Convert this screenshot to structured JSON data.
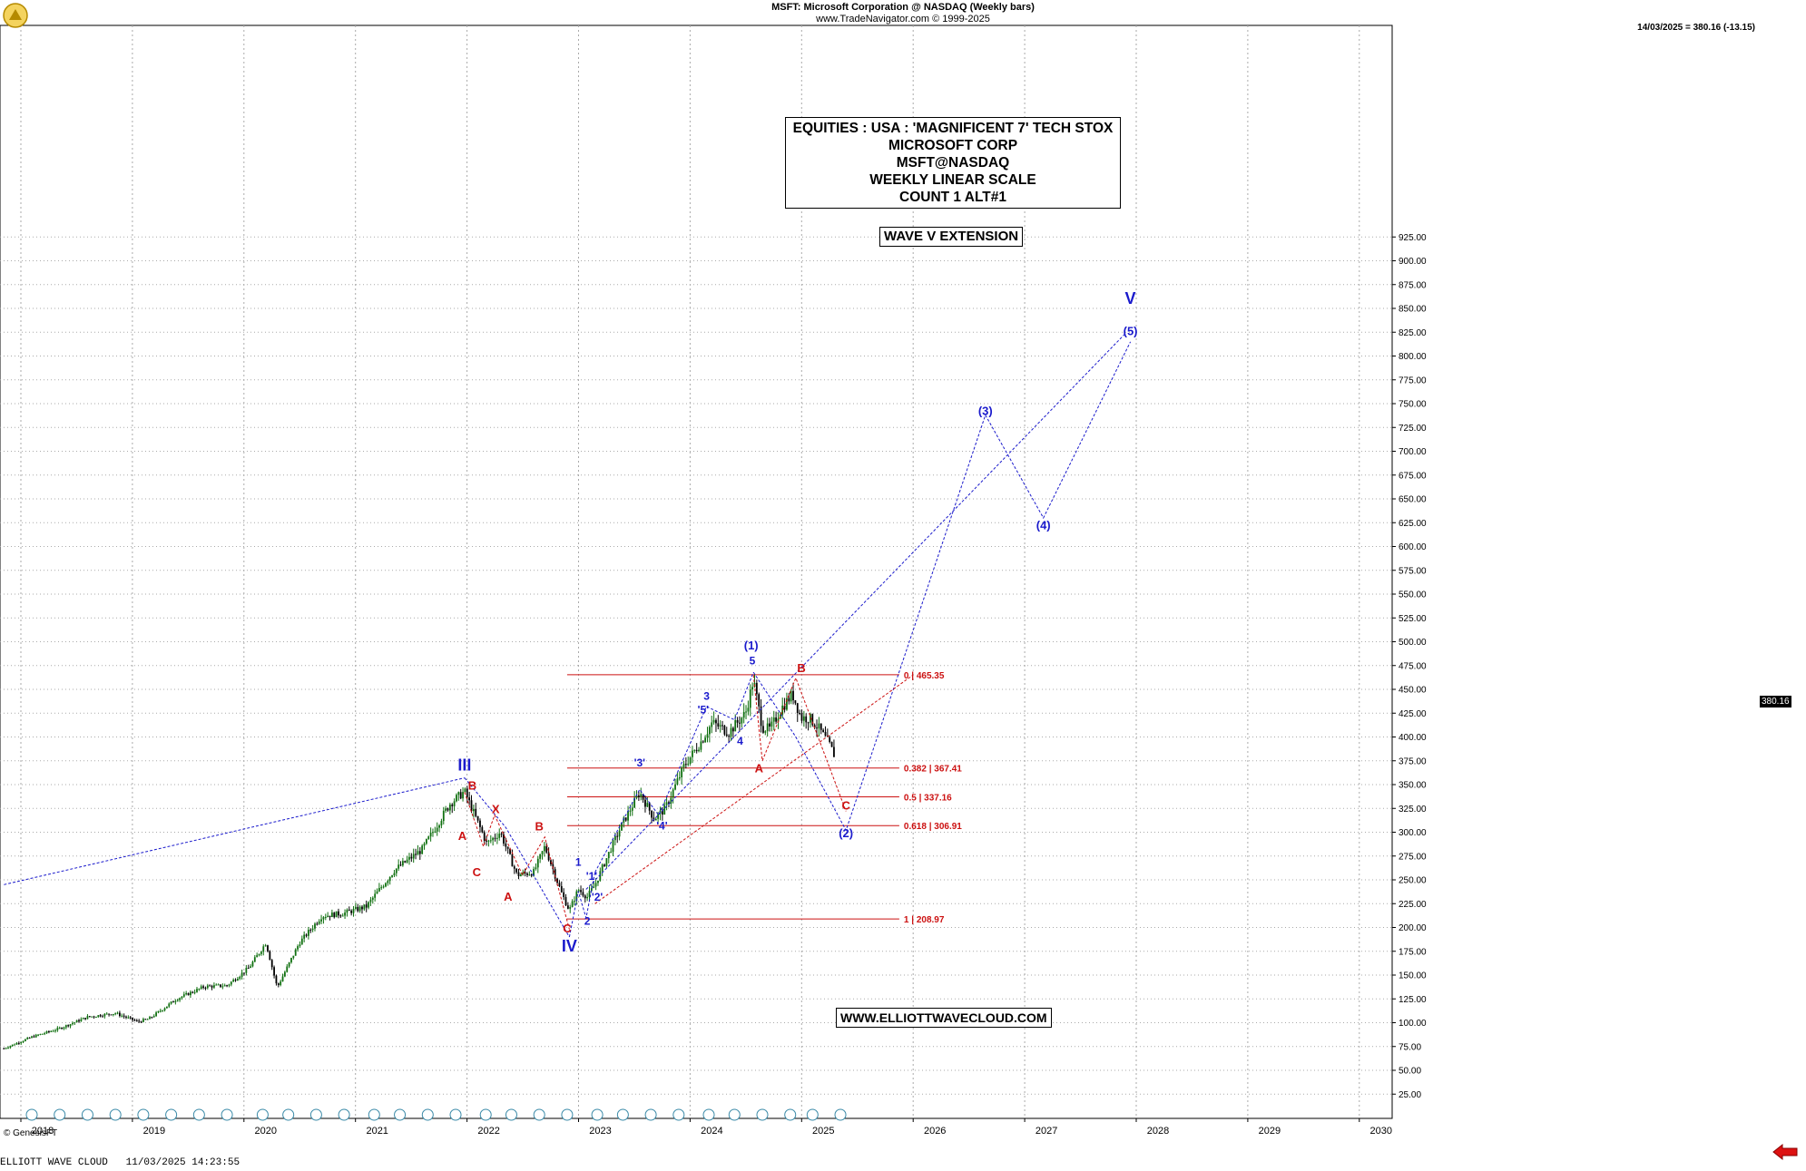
{
  "header": {
    "title": "MSFT:  Microsoft Corporation @ NASDAQ  (Weekly bars)",
    "copyright": "www.TradeNavigator.com © 1999-2025",
    "quote": "14/03/2025 = 380.16 (-13.15)"
  },
  "infobox": {
    "lines": [
      "EQUITIES : USA : 'MAGNIFICENT 7' TECH STOX",
      "MICROSOFT CORP",
      "MSFT@NASDAQ",
      "WEEKLY LINEAR SCALE",
      "COUNT 1 ALT#1"
    ]
  },
  "tag_wave": "WAVE V EXTENSION",
  "tag_site": "WWW.ELLIOTTWAVECLOUD.COM",
  "genesis": "© GenesisFT",
  "footer": "ELLIOTT WAVE CLOUD   11/03/2025 14:23:55",
  "last_price_label": "380.16",
  "colors": {
    "bull": "#107010",
    "bear": "#000000",
    "blue": "#1a1acc",
    "red": "#cc1111",
    "grid": "#aaaaaa"
  },
  "chart_data": {
    "type": "candlestick",
    "x_range": [
      2017.75,
      2030.1
    ],
    "ylim": [
      0,
      945
    ],
    "y_ticks": [
      25,
      50,
      75,
      100,
      125,
      150,
      175,
      200,
      225,
      250,
      275,
      300,
      325,
      350,
      375,
      400,
      425,
      450,
      475,
      500,
      525,
      550,
      575,
      600,
      625,
      650,
      675,
      700,
      725,
      750,
      775,
      800,
      825,
      850,
      875,
      900,
      925
    ],
    "x_ticks": [
      "2018",
      "2019",
      "2020",
      "2021",
      "2022",
      "2023",
      "2024",
      "2025",
      "2026",
      "2027",
      "2028",
      "2029",
      "2030"
    ],
    "price_path": [
      [
        2017.75,
        73
      ],
      [
        2018.0,
        85
      ],
      [
        2018.25,
        94
      ],
      [
        2018.5,
        106
      ],
      [
        2018.75,
        110
      ],
      [
        2018.95,
        101
      ],
      [
        2019.05,
        104
      ],
      [
        2019.3,
        125
      ],
      [
        2019.55,
        138
      ],
      [
        2019.75,
        139
      ],
      [
        2019.95,
        158
      ],
      [
        2020.1,
        184
      ],
      [
        2020.2,
        137
      ],
      [
        2020.4,
        184
      ],
      [
        2020.6,
        212
      ],
      [
        2020.8,
        215
      ],
      [
        2021.0,
        222
      ],
      [
        2021.25,
        260
      ],
      [
        2021.5,
        282
      ],
      [
        2021.75,
        330
      ],
      [
        2021.88,
        343
      ],
      [
        2022.0,
        310
      ],
      [
        2022.08,
        288
      ],
      [
        2022.2,
        300
      ],
      [
        2022.35,
        255
      ],
      [
        2022.5,
        258
      ],
      [
        2022.6,
        285
      ],
      [
        2022.75,
        236
      ],
      [
        2022.82,
        218
      ],
      [
        2022.9,
        240
      ],
      [
        2022.98,
        232
      ],
      [
        2023.05,
        245
      ],
      [
        2023.2,
        285
      ],
      [
        2023.3,
        310
      ],
      [
        2023.45,
        342
      ],
      [
        2023.58,
        314
      ],
      [
        2023.68,
        325
      ],
      [
        2023.85,
        370
      ],
      [
        2024.0,
        395
      ],
      [
        2024.1,
        415
      ],
      [
        2024.25,
        405
      ],
      [
        2024.4,
        425
      ],
      [
        2024.47,
        460
      ],
      [
        2024.55,
        410
      ],
      [
        2024.62,
        408
      ],
      [
        2024.72,
        430
      ],
      [
        2024.82,
        445
      ],
      [
        2024.9,
        420
      ],
      [
        2024.97,
        420
      ],
      [
        2025.05,
        410
      ],
      [
        2025.15,
        392
      ],
      [
        2025.2,
        380
      ]
    ],
    "fib_levels": [
      {
        "label": "0 | 465.35",
        "value": 465.35
      },
      {
        "label": "0.382 | 367.41",
        "value": 367.41
      },
      {
        "label": "0.5 | 337.16",
        "value": 337.16
      },
      {
        "label": "0.618 | 306.91",
        "value": 306.91
      },
      {
        "label": "1 | 208.97",
        "value": 208.97
      }
    ],
    "fib_x_range": [
      2022.8,
      2025.9
    ],
    "blue_paths": [
      [
        [
          2017.75,
          245
        ],
        [
          2021.88,
          357
        ]
      ],
      [
        [
          2021.88,
          357
        ],
        [
          2022.25,
          305
        ],
        [
          2022.82,
          190
        ]
      ],
      [
        [
          2022.82,
          190
        ],
        [
          2022.9,
          238
        ],
        [
          2022.97,
          210
        ],
        [
          2023.05,
          258
        ]
      ],
      [
        [
          2023.05,
          258
        ],
        [
          2023.45,
          345
        ],
        [
          2023.62,
          318
        ],
        [
          2024.05,
          432
        ],
        [
          2024.3,
          418
        ],
        [
          2024.47,
          468
        ]
      ],
      [
        [
          2024.47,
          468
        ],
        [
          2024.85,
          400
        ],
        [
          2025.3,
          302
        ],
        [
          2026.55,
          738
        ],
        [
          2027.07,
          630
        ],
        [
          2027.85,
          815
        ]
      ],
      [
        [
          2022.97,
          240
        ],
        [
          2027.8,
          823
        ]
      ]
    ],
    "red_paths": [
      [
        [
          2021.88,
          342
        ],
        [
          2022.05,
          285
        ],
        [
          2022.15,
          318
        ],
        [
          2022.4,
          255
        ],
        [
          2022.6,
          295
        ],
        [
          2022.82,
          198
        ]
      ],
      [
        [
          2024.47,
          465
        ],
        [
          2024.55,
          375
        ],
        [
          2024.85,
          462
        ],
        [
          2025.3,
          322
        ]
      ],
      [
        [
          2023.05,
          225
        ],
        [
          2025.9,
          465
        ]
      ]
    ],
    "labels": [
      {
        "text": "III",
        "x": 2021.88,
        "y": 365,
        "color": "blue",
        "size": 18
      },
      {
        "text": "IV",
        "x": 2022.82,
        "y": 175,
        "color": "blue",
        "size": 18
      },
      {
        "text": "V",
        "x": 2027.85,
        "y": 855,
        "color": "blue",
        "size": 18
      },
      {
        "text": "B",
        "x": 2021.95,
        "y": 345,
        "color": "red",
        "size": 13
      },
      {
        "text": "A",
        "x": 2021.86,
        "y": 292,
        "color": "red",
        "size": 13
      },
      {
        "text": "C",
        "x": 2021.99,
        "y": 254,
        "color": "red",
        "size": 13
      },
      {
        "text": "X",
        "x": 2022.16,
        "y": 320,
        "color": "red",
        "size": 13
      },
      {
        "text": "A",
        "x": 2022.27,
        "y": 228,
        "color": "red",
        "size": 13
      },
      {
        "text": "B",
        "x": 2022.55,
        "y": 302,
        "color": "red",
        "size": 13
      },
      {
        "text": "C",
        "x": 2022.8,
        "y": 195,
        "color": "red",
        "size": 13
      },
      {
        "text": "1",
        "x": 2022.9,
        "y": 265,
        "color": "blue",
        "size": 12
      },
      {
        "text": "2",
        "x": 2022.98,
        "y": 203,
        "color": "blue",
        "size": 12
      },
      {
        "text": "'1'",
        "x": 2023.02,
        "y": 250,
        "color": "blue",
        "size": 12
      },
      {
        "text": "'2'",
        "x": 2023.07,
        "y": 228,
        "color": "blue",
        "size": 12
      },
      {
        "text": "'3'",
        "x": 2023.45,
        "y": 369,
        "color": "blue",
        "size": 12
      },
      {
        "text": "'4'",
        "x": 2023.65,
        "y": 303,
        "color": "blue",
        "size": 12
      },
      {
        "text": "'5'",
        "x": 2024.02,
        "y": 425,
        "color": "blue",
        "size": 12
      },
      {
        "text": "3",
        "x": 2024.05,
        "y": 439,
        "color": "blue",
        "size": 12
      },
      {
        "text": "4",
        "x": 2024.35,
        "y": 392,
        "color": "blue",
        "size": 12
      },
      {
        "text": "5",
        "x": 2024.46,
        "y": 476,
        "color": "blue",
        "size": 12
      },
      {
        "text": "(1)",
        "x": 2024.45,
        "y": 492,
        "color": "blue",
        "size": 13
      },
      {
        "text": "A",
        "x": 2024.52,
        "y": 363,
        "color": "red",
        "size": 13
      },
      {
        "text": "B",
        "x": 2024.9,
        "y": 468,
        "color": "red",
        "size": 13
      },
      {
        "text": "C",
        "x": 2025.3,
        "y": 324,
        "color": "red",
        "size": 13
      },
      {
        "text": "(2)",
        "x": 2025.3,
        "y": 295,
        "color": "blue",
        "size": 13
      },
      {
        "text": "(3)",
        "x": 2026.55,
        "y": 738,
        "color": "blue",
        "size": 13
      },
      {
        "text": "(4)",
        "x": 2027.07,
        "y": 618,
        "color": "blue",
        "size": 13
      },
      {
        "text": "(5)",
        "x": 2027.85,
        "y": 822,
        "color": "blue",
        "size": 13
      }
    ],
    "dividend_marks": [
      2018.0,
      2018.25,
      2018.5,
      2018.75,
      2019.0,
      2019.25,
      2019.5,
      2019.75,
      2020.07,
      2020.3,
      2020.55,
      2020.8,
      2021.07,
      2021.3,
      2021.55,
      2021.8,
      2022.07,
      2022.3,
      2022.55,
      2022.8,
      2023.07,
      2023.3,
      2023.55,
      2023.8,
      2024.07,
      2024.3,
      2024.55,
      2024.8,
      2025.0,
      2025.25
    ]
  }
}
